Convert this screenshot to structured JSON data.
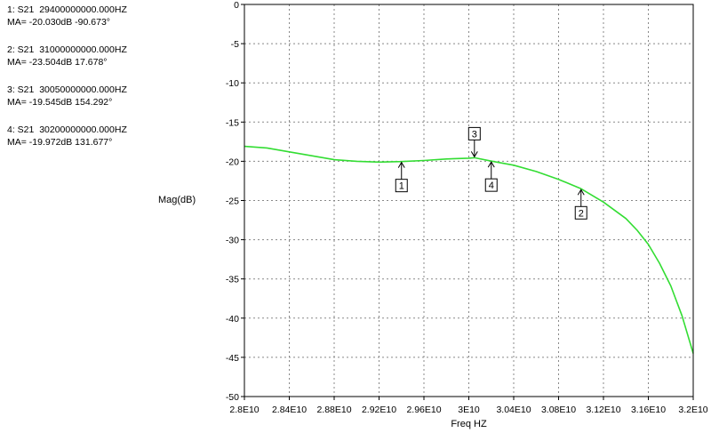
{
  "markers_panel": [
    {
      "line1": "1: S21  29400000000.000HZ",
      "line2": "MA= -20.030dB -90.673°"
    },
    {
      "line1": "2: S21  31000000000.000HZ",
      "line2": "MA= -23.504dB 17.678°"
    },
    {
      "line1": "3: S21  30050000000.000HZ",
      "line2": "MA= -19.545dB 154.292°"
    },
    {
      "line1": "4: S21  30200000000.000HZ",
      "line2": "MA= -19.972dB 131.677°"
    }
  ],
  "chart_data": {
    "type": "line",
    "xlabel": "Freq HZ",
    "ylabel": "Mag(dB)",
    "xlim": [
      28000000000,
      32000000000
    ],
    "ylim": [
      -50,
      0
    ],
    "grid": true,
    "x_tick_labels": [
      "2.8E10",
      "2.84E10",
      "2.88E10",
      "2.92E10",
      "2.96E10",
      "3E10",
      "3.04E10",
      "3.08E10",
      "3.12E10",
      "3.16E10",
      "3.2E10"
    ],
    "x_ticks": [
      28000000000,
      28400000000,
      28800000000,
      29200000000,
      29600000000,
      30000000000,
      30400000000,
      30800000000,
      31200000000,
      31600000000,
      32000000000
    ],
    "y_ticks": [
      0,
      -5,
      -10,
      -15,
      -20,
      -25,
      -30,
      -35,
      -40,
      -45,
      -50
    ],
    "y_tick_labels": [
      "0",
      "-5",
      "-10",
      "-15",
      "-20",
      "-25",
      "-30",
      "-35",
      "-40",
      "-45",
      "-50"
    ],
    "series": [
      {
        "color": "#33dd33",
        "x": [
          28000000000,
          28200000000,
          28400000000,
          28600000000,
          28800000000,
          29000000000,
          29200000000,
          29400000000,
          29600000000,
          29800000000,
          30000000000,
          30050000000,
          30200000000,
          30400000000,
          30600000000,
          30800000000,
          31000000000,
          31200000000,
          31400000000,
          31500000000,
          31600000000,
          31700000000,
          31800000000,
          31900000000,
          32000000000
        ],
        "y": [
          -18.1,
          -18.3,
          -18.8,
          -19.3,
          -19.8,
          -20.0,
          -20.1,
          -20.03,
          -19.9,
          -19.7,
          -19.6,
          -19.545,
          -19.972,
          -20.5,
          -21.3,
          -22.3,
          -23.504,
          -25.2,
          -27.3,
          -28.8,
          -30.6,
          -33.0,
          -35.9,
          -39.7,
          -44.5
        ]
      }
    ],
    "markers": [
      {
        "label": "1",
        "x": 29400000000,
        "y": -20.03,
        "box_side": "below"
      },
      {
        "label": "2",
        "x": 31000000000,
        "y": -23.504,
        "box_side": "below"
      },
      {
        "label": "3",
        "x": 30050000000,
        "y": -19.545,
        "box_side": "above"
      },
      {
        "label": "4",
        "x": 30200000000,
        "y": -19.972,
        "box_side": "below"
      }
    ]
  }
}
